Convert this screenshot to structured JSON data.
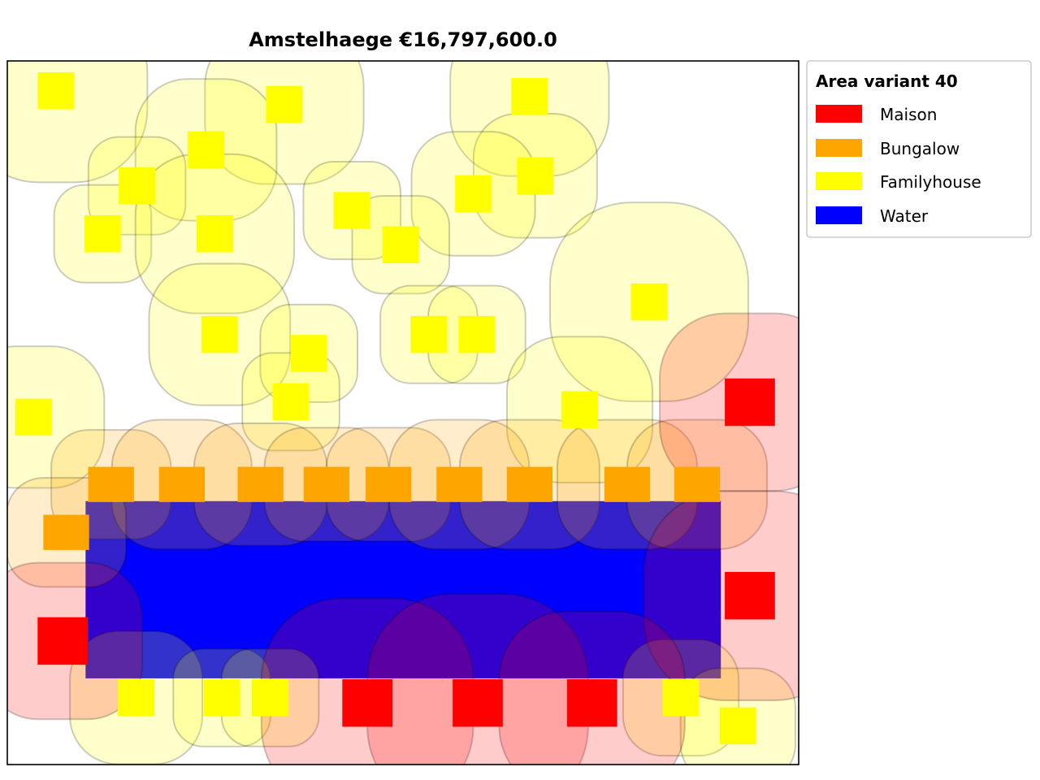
{
  "chart_data": {
    "type": "map",
    "title": "Amstelhaege €16,797,600.0",
    "xlim": [
      0,
      180
    ],
    "ylim": [
      0,
      160
    ],
    "grid": false,
    "legend_position": "outside-top-right",
    "legend": {
      "title": "Area variant 40",
      "entries": [
        {
          "label": "Maison",
          "color": "#ff0000"
        },
        {
          "label": "Bungalow",
          "color": "#ffa500"
        },
        {
          "label": "Familyhouse",
          "color": "#ffff00"
        },
        {
          "label": "Water",
          "color": "#0000ff"
        }
      ]
    },
    "colors": {
      "Maison": "#ff0000",
      "Bungalow": "#ffa500",
      "Familyhouse": "#ffff00",
      "Water": "#0000ff"
    },
    "water": [
      {
        "x0": 17.8,
        "x1": 162.3,
        "y0": 19.6,
        "y1": 59.9
      }
    ],
    "houses": [
      {
        "type": "Familyhouse",
        "x": 11.1,
        "y": 153.2,
        "w": 8.3,
        "h": 8.4,
        "clearance": 16.6
      },
      {
        "type": "Familyhouse",
        "x": 63.0,
        "y": 150.1,
        "w": 8.3,
        "h": 8.4,
        "clearance": 13.9
      },
      {
        "type": "Familyhouse",
        "x": 118.8,
        "y": 151.9,
        "w": 8.3,
        "h": 8.4,
        "clearance": 13.9
      },
      {
        "type": "Familyhouse",
        "x": 45.2,
        "y": 139.8,
        "w": 8.3,
        "h": 8.4,
        "clearance": 11.9
      },
      {
        "type": "Familyhouse",
        "x": 120.1,
        "y": 133.9,
        "w": 8.3,
        "h": 8.4,
        "clearance": 9.9
      },
      {
        "type": "Familyhouse",
        "x": 29.5,
        "y": 131.6,
        "w": 8.3,
        "h": 8.4,
        "clearance": 6.9
      },
      {
        "type": "Familyhouse",
        "x": 106.0,
        "y": 129.8,
        "w": 8.3,
        "h": 8.4,
        "clearance": 9.9
      },
      {
        "type": "Familyhouse",
        "x": 78.4,
        "y": 126.0,
        "w": 8.3,
        "h": 8.4,
        "clearance": 6.9
      },
      {
        "type": "Familyhouse",
        "x": 21.7,
        "y": 120.7,
        "w": 8.3,
        "h": 8.4,
        "clearance": 6.9
      },
      {
        "type": "Familyhouse",
        "x": 47.2,
        "y": 120.7,
        "w": 8.3,
        "h": 8.4,
        "clearance": 13.9
      },
      {
        "type": "Familyhouse",
        "x": 89.5,
        "y": 118.2,
        "w": 8.3,
        "h": 8.4,
        "clearance": 6.9
      },
      {
        "type": "Familyhouse",
        "x": 146.0,
        "y": 105.2,
        "w": 8.3,
        "h": 8.4,
        "clearance": 18.4
      },
      {
        "type": "Familyhouse",
        "x": 48.3,
        "y": 97.8,
        "w": 8.3,
        "h": 8.4,
        "clearance": 11.9
      },
      {
        "type": "Familyhouse",
        "x": 95.9,
        "y": 97.8,
        "w": 8.3,
        "h": 8.4,
        "clearance": 6.9
      },
      {
        "type": "Familyhouse",
        "x": 106.8,
        "y": 97.8,
        "w": 8.3,
        "h": 8.4,
        "clearance": 6.9
      },
      {
        "type": "Familyhouse",
        "x": 68.6,
        "y": 93.5,
        "w": 8.3,
        "h": 8.4,
        "clearance": 6.9
      },
      {
        "type": "Familyhouse",
        "x": 6.0,
        "y": 79.0,
        "w": 8.3,
        "h": 8.4,
        "clearance": 11.9
      },
      {
        "type": "Familyhouse",
        "x": 64.5,
        "y": 82.5,
        "w": 8.3,
        "h": 8.4,
        "clearance": 6.9
      },
      {
        "type": "Familyhouse",
        "x": 130.2,
        "y": 80.7,
        "w": 8.3,
        "h": 8.4,
        "clearance": 12.4
      },
      {
        "type": "Familyhouse",
        "x": 29.3,
        "y": 15.2,
        "w": 8.3,
        "h": 8.4,
        "clearance": 10.9
      },
      {
        "type": "Familyhouse",
        "x": 48.8,
        "y": 15.2,
        "w": 8.3,
        "h": 8.4,
        "clearance": 6.9
      },
      {
        "type": "Familyhouse",
        "x": 59.8,
        "y": 15.2,
        "w": 8.3,
        "h": 8.4,
        "clearance": 6.9
      },
      {
        "type": "Familyhouse",
        "x": 153.2,
        "y": 15.2,
        "w": 8.3,
        "h": 8.4,
        "clearance": 9.0
      },
      {
        "type": "Familyhouse",
        "x": 166.2,
        "y": 8.8,
        "w": 8.3,
        "h": 8.4,
        "clearance": 8.9
      },
      {
        "type": "Bungalow",
        "x": 23.6,
        "y": 63.7,
        "w": 10.4,
        "h": 8.0,
        "clearance": 8.4
      },
      {
        "type": "Bungalow",
        "x": 39.7,
        "y": 63.7,
        "w": 10.4,
        "h": 8.0,
        "clearance": 10.7
      },
      {
        "type": "Bungalow",
        "x": 57.6,
        "y": 63.7,
        "w": 10.4,
        "h": 8.0,
        "clearance": 9.9
      },
      {
        "type": "Bungalow",
        "x": 72.6,
        "y": 63.7,
        "w": 10.4,
        "h": 8.0,
        "clearance": 8.9
      },
      {
        "type": "Bungalow",
        "x": 86.7,
        "y": 63.7,
        "w": 10.4,
        "h": 8.0,
        "clearance": 8.9
      },
      {
        "type": "Bungalow",
        "x": 102.8,
        "y": 63.7,
        "w": 10.4,
        "h": 8.0,
        "clearance": 10.7
      },
      {
        "type": "Bungalow",
        "x": 118.8,
        "y": 63.7,
        "w": 10.4,
        "h": 8.0,
        "clearance": 10.7
      },
      {
        "type": "Bungalow",
        "x": 141.0,
        "y": 63.7,
        "w": 10.4,
        "h": 8.0,
        "clearance": 10.7
      },
      {
        "type": "Bungalow",
        "x": 156.9,
        "y": 63.7,
        "w": 10.4,
        "h": 8.0,
        "clearance": 10.7
      },
      {
        "type": "Bungalow",
        "x": 13.4,
        "y": 52.8,
        "w": 10.4,
        "h": 8.0,
        "clearance": 8.4
      },
      {
        "type": "Maison",
        "x": 168.9,
        "y": 82.4,
        "w": 11.4,
        "h": 10.8,
        "clearance": 14.8
      },
      {
        "type": "Maison",
        "x": 168.9,
        "y": 38.4,
        "w": 11.4,
        "h": 10.8,
        "clearance": 18.4
      },
      {
        "type": "Maison",
        "x": 12.6,
        "y": 28.1,
        "w": 11.4,
        "h": 10.8,
        "clearance": 12.4
      },
      {
        "type": "Maison",
        "x": 81.9,
        "y": 14.0,
        "w": 11.4,
        "h": 10.8,
        "clearance": 18.4
      },
      {
        "type": "Maison",
        "x": 107.0,
        "y": 14.0,
        "w": 11.4,
        "h": 10.8,
        "clearance": 19.4
      },
      {
        "type": "Maison",
        "x": 133.0,
        "y": 14.0,
        "w": 11.4,
        "h": 10.8,
        "clearance": 15.4
      }
    ]
  }
}
